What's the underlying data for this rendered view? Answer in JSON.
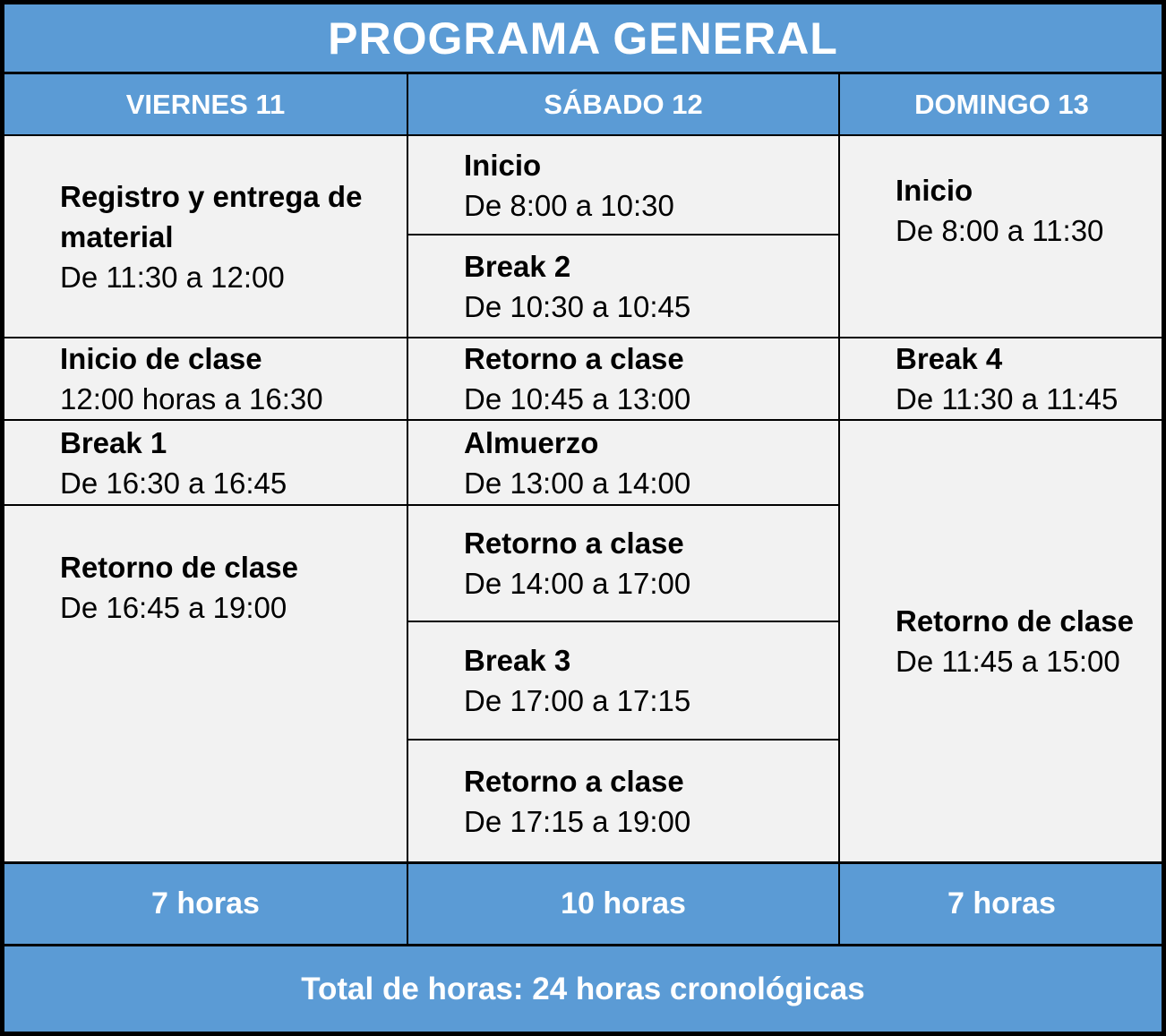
{
  "title": "PROGRAMA GENERAL",
  "grand_total": "Total de horas: 24 horas cronológicas",
  "colors": {
    "accent": "#5B9BD5",
    "cell-bg": "#F2F2F2",
    "border": "#000000"
  },
  "columns": [
    {
      "header": "VIERNES 11",
      "total": "7 horas",
      "events": [
        {
          "name": "Registro y entrega de material",
          "time": "De 11:30 a 12:00"
        },
        {
          "name": "Inicio de clase",
          "time": "12:00 horas a 16:30"
        },
        {
          "name": "Break 1",
          "time": "De 16:30 a 16:45"
        },
        {
          "name": "Retorno de clase",
          "time": "De 16:45 a 19:00"
        }
      ]
    },
    {
      "header": "SÁBADO 12",
      "total": "10 horas",
      "events": [
        {
          "name": "Inicio",
          "time": "De 8:00 a 10:30"
        },
        {
          "name": "Break 2",
          "time": "De 10:30 a 10:45"
        },
        {
          "name": "Retorno a clase",
          "time": "De 10:45 a 13:00"
        },
        {
          "name": "Almuerzo",
          "time": "De 13:00 a 14:00"
        },
        {
          "name": "Retorno a clase",
          "time": "De 14:00 a 17:00"
        },
        {
          "name": "Break 3",
          "time": "De 17:00 a 17:15"
        },
        {
          "name": "Retorno a clase",
          "time": "De 17:15 a 19:00"
        }
      ]
    },
    {
      "header": "DOMINGO 13",
      "total": "7 horas",
      "events": [
        {
          "name": "Inicio",
          "time": "De 8:00 a 11:30"
        },
        {
          "name": "Break 4",
          "time": "De 11:30 a 11:45"
        },
        {
          "name": "Retorno de clase",
          "time": "De 11:45 a 15:00"
        }
      ]
    }
  ]
}
